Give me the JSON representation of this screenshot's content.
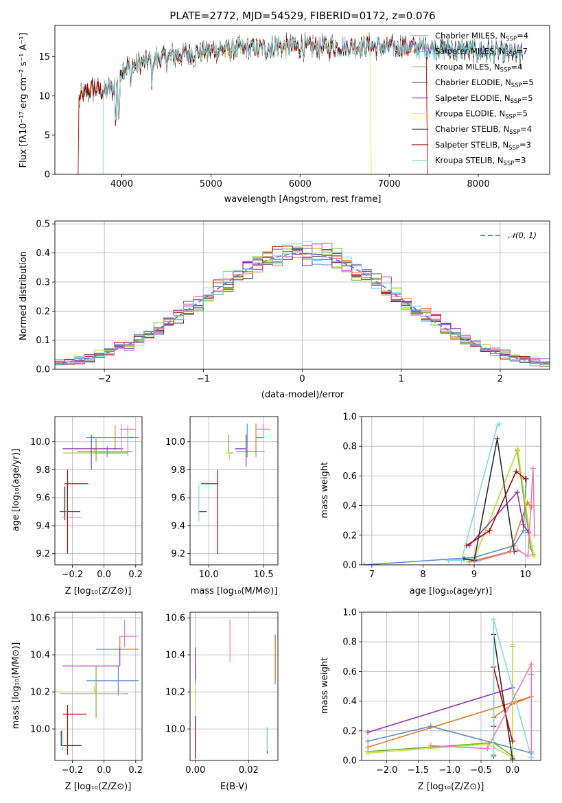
{
  "colors": [
    "#5b8bd6",
    "#e07b1c",
    "#67b51e",
    "#555555",
    "#8f2fb5",
    "#e8e85a",
    "#2b2b2b",
    "#b00000",
    "#80d8e0"
  ],
  "panel_colors": [
    "#5b8bd6",
    "#e07b1c",
    "#67b51e",
    "#2b2b2b",
    "#8f2fb5",
    "#c8e040",
    "#555555",
    "#b00000",
    "#80d8e0",
    "#e87bb8"
  ],
  "chart_data": [
    {
      "type": "line",
      "title": "PLATE=2772, MJD=54529, FIBERID=0172, z=0.076",
      "xlabel": "wavelength [Angstrom, rest frame]",
      "ylabel": "Flux [fλ10⁻¹⁷ erg cm⁻² s⁻¹ A⁻¹]",
      "xlim": [
        3250,
        8800
      ],
      "ylim": [
        0,
        19
      ],
      "xticks": [
        4000,
        5000,
        6000,
        7000,
        8000
      ],
      "yticks": [
        0,
        5,
        10,
        15
      ],
      "legend_position": "top-right",
      "series": [
        {
          "name": "Chabrier MILES, N",
          "sub": "SSP",
          "suffix": "=4"
        },
        {
          "name": "Salpeter MILES, N",
          "sub": "SSP",
          "suffix": "=7"
        },
        {
          "name": "Kroupa MILES, N",
          "sub": "SSP",
          "suffix": "=4"
        },
        {
          "name": "Chabrier ELODIE, N",
          "sub": "SSP",
          "suffix": "=5"
        },
        {
          "name": "Salpeter ELODIE, N",
          "sub": "SSP",
          "suffix": "=5"
        },
        {
          "name": "Kroupa ELODIE, N",
          "sub": "SSP",
          "suffix": "=5"
        },
        {
          "name": "Chabrier STELIB, N",
          "sub": "SSP",
          "suffix": "=4"
        },
        {
          "name": "Salpeter STELIB, N",
          "sub": "SSP",
          "suffix": "=3"
        },
        {
          "name": "Kroupa STELIB, N",
          "sub": "SSP",
          "suffix": "=3"
        }
      ],
      "continuum": {
        "x": [
          3520,
          3600,
          3700,
          3800,
          3900,
          4000,
          4200,
          4500,
          4800,
          5000,
          5300,
          5600,
          6000,
          6500,
          7000,
          7400,
          7800,
          8200,
          8500
        ],
        "y": [
          9.5,
          10.5,
          11,
          10.5,
          11,
          13.5,
          14.2,
          15,
          15.5,
          15.8,
          16,
          16.1,
          16.2,
          16.3,
          16.3,
          16.1,
          15.9,
          15.6,
          15.3
        ]
      }
    },
    {
      "type": "histogram",
      "xlabel": "(data-model)/error",
      "ylabel": "Normed distribution",
      "xlim": [
        -2.5,
        2.5
      ],
      "ylim": [
        0,
        0.51
      ],
      "xticks": [
        -2,
        -1,
        0,
        1,
        2
      ],
      "yticks": [
        0.0,
        0.1,
        0.2,
        0.3,
        0.4,
        0.5
      ],
      "legend_label": "𝒩(0, 1)",
      "legend_position": "top-right",
      "bin_width": 0.1,
      "reference": "normal(0,1)"
    },
    {
      "type": "scatter",
      "xlabel": "Z [log₁₀(Z/Z⊙)]",
      "ylabel": "age  [log₁₀(age/yr)]",
      "xlim": [
        -0.31,
        0.24
      ],
      "ylim": [
        9.12,
        10.18
      ],
      "xticks": [
        -0.2,
        0.0,
        0.2
      ],
      "yticks": [
        9.2,
        9.4,
        9.6,
        9.8,
        10.0
      ],
      "errorbars": [
        {
          "x": 0.02,
          "xerr": [
            0.19,
            0.16
          ],
          "y": 9.93,
          "yerr": [
            0.04,
            0.04
          ],
          "c": 0
        },
        {
          "x": 0.07,
          "xerr": [
            0.18,
            0.15
          ],
          "y": 10.03,
          "yerr": [
            0.09,
            0.09
          ],
          "c": 1
        },
        {
          "x": -0.05,
          "xerr": [
            0.21,
            0.2
          ],
          "y": 9.92,
          "yerr": [
            0.06,
            0.1
          ],
          "c": 2
        },
        {
          "x": -0.06,
          "xerr": [
            0.2,
            0.0
          ],
          "y": 9.92,
          "yerr": [
            0.0,
            0.03
          ],
          "c": 5
        },
        {
          "x": -0.08,
          "xerr": [
            0.18,
            0.2
          ],
          "y": 9.95,
          "yerr": [
            0.15,
            0.1
          ],
          "c": 4
        },
        {
          "x": -0.25,
          "xerr": [
            0.03,
            0.1
          ],
          "y": 9.5,
          "yerr": [
            0.06,
            0.18
          ],
          "c": 3
        },
        {
          "x": -0.24,
          "xerr": [
            0.03,
            0.1
          ],
          "y": 9.46,
          "yerr": [
            0.02,
            0.23
          ],
          "c": 8
        },
        {
          "x": -0.23,
          "xerr": [
            0.02,
            0.13
          ],
          "y": 9.7,
          "yerr": [
            0.5,
            0.1
          ],
          "c": 7
        },
        {
          "x": 0.15,
          "xerr": [
            0.05,
            0.05
          ],
          "y": 10.09,
          "yerr": [
            0.19,
            0.03
          ],
          "c": 9
        },
        {
          "x": 0.11,
          "xerr": [
            0.0,
            0.0
          ],
          "y": 10.05,
          "yerr": [
            0.12,
            0.08
          ],
          "c": 9
        }
      ]
    },
    {
      "type": "scatter",
      "xlabel": "mass [log₁₀(M/M⊙)]",
      "ylabel": "",
      "xlim": [
        9.83,
        10.63
      ],
      "ylim": [
        9.12,
        10.18
      ],
      "xticks": [
        10.0,
        10.5
      ],
      "yticks": [
        9.2,
        9.4,
        9.6,
        9.8,
        10.0
      ],
      "errorbars": [
        {
          "x": 10.35,
          "xerr": [
            0.1,
            0.16
          ],
          "y": 9.93,
          "yerr": [
            0.04,
            0.2
          ],
          "c": 0
        },
        {
          "x": 10.43,
          "xerr": [
            0.0,
            0.07
          ],
          "y": 10.03,
          "yerr": [
            0.14,
            0.1
          ],
          "c": 1
        },
        {
          "x": 10.18,
          "xerr": [
            0.0,
            0.04
          ],
          "y": 9.92,
          "yerr": [
            0.0,
            0.13
          ],
          "c": 2
        },
        {
          "x": 10.19,
          "xerr": [
            0.04,
            0.0
          ],
          "y": 9.92,
          "yerr": [
            0.05,
            0.0
          ],
          "c": 5
        },
        {
          "x": 10.34,
          "xerr": [
            0.1,
            0.0
          ],
          "y": 9.95,
          "yerr": [
            0.13,
            0.1
          ],
          "c": 4
        },
        {
          "x": 9.91,
          "xerr": [
            0.0,
            0.07
          ],
          "y": 9.5,
          "yerr": [
            0.0,
            0.0
          ],
          "c": 3
        },
        {
          "x": 9.91,
          "xerr": [
            0.0,
            0.0
          ],
          "y": 9.46,
          "yerr": [
            0.03,
            0.23
          ],
          "c": 8
        },
        {
          "x": 10.08,
          "xerr": [
            0.15,
            0.0
          ],
          "y": 9.7,
          "yerr": [
            0.5,
            0.1
          ],
          "c": 7
        },
        {
          "x": 10.5,
          "xerr": [
            0.07,
            0.06
          ],
          "y": 10.09,
          "yerr": [
            0.06,
            0.04
          ],
          "c": 9
        }
      ]
    },
    {
      "type": "line",
      "xlabel": "age  [log₁₀(age/yr)]",
      "ylabel": "mass weight",
      "xlim": [
        6.8,
        10.3
      ],
      "ylim": [
        0,
        1
      ],
      "xticks": [
        7,
        8,
        9,
        10
      ],
      "yticks": [
        0.0,
        0.2,
        0.4,
        0.6,
        0.8,
        1.0
      ],
      "series": [
        {
          "c": 0,
          "x": [
            6.85,
            9.0,
            9.78,
            9.96,
            10.02
          ],
          "y": [
            0.0,
            0.05,
            0.13,
            0.23,
            0.58
          ]
        },
        {
          "c": 1,
          "x": [
            8.9,
            9.7,
            10.04,
            10.12
          ],
          "y": [
            0.02,
            0.09,
            0.42,
            0.39
          ]
        },
        {
          "c": 2,
          "x": [
            8.5,
            9.0,
            9.84,
            10.1,
            10.15
          ],
          "y": [
            0.03,
            0.04,
            0.77,
            0.12,
            0.07
          ]
        },
        {
          "c": 5,
          "x": [
            8.5,
            9.0,
            9.85,
            10.12,
            10.17
          ],
          "y": [
            0.03,
            0.04,
            0.78,
            0.13,
            0.06
          ]
        },
        {
          "c": 4,
          "x": [
            8.9,
            9.84,
            9.96,
            10.06
          ],
          "y": [
            0.13,
            0.49,
            0.27,
            0.22
          ]
        },
        {
          "c": 3,
          "x": [
            8.8,
            9.0,
            9.45,
            9.78
          ],
          "y": [
            0.04,
            0.03,
            0.85,
            0.09
          ]
        },
        {
          "c": 7,
          "x": [
            8.85,
            9.3,
            9.82,
            10.0
          ],
          "y": [
            0.13,
            0.23,
            0.63,
            0.58
          ]
        },
        {
          "c": 8,
          "x": [
            8.5,
            8.75,
            9.45,
            9.5
          ],
          "y": [
            0.03,
            0.03,
            0.94,
            0.95
          ]
        },
        {
          "c": 9,
          "x": [
            9.0,
            9.85,
            10.05,
            10.15,
            10.18
          ],
          "y": [
            0.02,
            0.1,
            0.06,
            0.65,
            0.2
          ]
        }
      ]
    },
    {
      "type": "scatter",
      "xlabel": "Z [log₁₀(Z/Z⊙)]",
      "ylabel": "mass [log₁₀(M/M⊙)]",
      "xlim": [
        -0.31,
        0.24
      ],
      "ylim": [
        9.83,
        10.63
      ],
      "xticks": [
        -0.2,
        0.0,
        0.2
      ],
      "yticks": [
        10.0,
        10.2,
        10.4,
        10.6
      ],
      "errorbars": [
        {
          "x": 0.09,
          "xerr": [
            0.2,
            0.13
          ],
          "y": 10.26,
          "yerr": [
            0.08,
            0.08
          ],
          "c": 0
        },
        {
          "x": 0.1,
          "xerr": [
            0.15,
            0.12
          ],
          "y": 10.43,
          "yerr": [
            0.0,
            0.07
          ],
          "c": 1
        },
        {
          "x": -0.05,
          "xerr": [
            0.22,
            0.2
          ],
          "y": 10.19,
          "yerr": [
            0.13,
            0.15
          ],
          "c": 2
        },
        {
          "x": -0.06,
          "xerr": [
            0.22,
            0.2
          ],
          "y": 10.19,
          "yerr": [
            0.0,
            0.04
          ],
          "c": 5
        },
        {
          "x": 0.1,
          "xerr": [
            0.36,
            0.0
          ],
          "y": 10.34,
          "yerr": [
            0.0,
            0.1
          ],
          "c": 4
        },
        {
          "x": -0.27,
          "xerr": [
            0.0,
            0.13
          ],
          "y": 9.91,
          "yerr": [
            0.0,
            0.08
          ],
          "c": 3
        },
        {
          "x": -0.26,
          "xerr": [
            0.0,
            0.0
          ],
          "y": 9.91,
          "yerr": [
            0.03,
            0.09
          ],
          "c": 8
        },
        {
          "x": -0.23,
          "xerr": [
            0.03,
            0.12
          ],
          "y": 10.08,
          "yerr": [
            0.22,
            0.05
          ],
          "c": 7
        },
        {
          "x": 0.13,
          "xerr": [
            0.03,
            0.08
          ],
          "y": 10.5,
          "yerr": [
            0.06,
            0.09
          ],
          "c": 9
        }
      ]
    },
    {
      "type": "scatter",
      "xlabel": "E(B-V)",
      "ylabel": "",
      "xlim": [
        -0.002,
        0.031
      ],
      "ylim": [
        9.83,
        10.63
      ],
      "xticks": [
        0.0,
        0.02
      ],
      "yticks": [
        10.0,
        10.2,
        10.4,
        10.6
      ],
      "errorbars": [
        {
          "x": 0.0,
          "xerr": [
            0,
            0
          ],
          "y": 10.26,
          "yerr": [
            0.1,
            0.08
          ],
          "c": 0
        },
        {
          "x": 0.0,
          "xerr": [
            0,
            0
          ],
          "y": 10.35,
          "yerr": [
            0.08,
            0.09
          ],
          "c": 4
        },
        {
          "x": 0.0,
          "xerr": [
            0,
            0
          ],
          "y": 10.17,
          "yerr": [
            0.05,
            0.08
          ],
          "c": 5
        },
        {
          "x": 0.0,
          "xerr": [
            0,
            0
          ],
          "y": 9.99,
          "yerr": [
            0.15,
            0.08
          ],
          "c": 7
        },
        {
          "x": 0.013,
          "xerr": [
            0,
            0
          ],
          "y": 10.47,
          "yerr": [
            0.11,
            0.12
          ],
          "c": 9
        },
        {
          "x": 0.027,
          "xerr": [
            0,
            0
          ],
          "y": 9.93,
          "yerr": [
            0.06,
            0.08
          ],
          "c": 3
        },
        {
          "x": 0.027,
          "xerr": [
            0,
            0
          ],
          "y": 9.93,
          "yerr": [
            0.05,
            0.08
          ],
          "c": 8
        },
        {
          "x": 0.03,
          "xerr": [
            0,
            0
          ],
          "y": 10.32,
          "yerr": [
            0.08,
            0.19
          ],
          "c": 0
        },
        {
          "x": 0.03,
          "xerr": [
            0,
            0
          ],
          "y": 10.38,
          "yerr": [
            0.12,
            0.1
          ],
          "c": 1
        }
      ]
    },
    {
      "type": "line",
      "xlabel": "Z [log₁₀(Z/Z⊙)]",
      "ylabel": "mass weight",
      "xlim": [
        -2.4,
        0.45
      ],
      "ylim": [
        0,
        1
      ],
      "xticks": [
        -2.0,
        -1.5,
        -1.0,
        -0.5,
        0.0
      ],
      "yticks": [
        0.0,
        0.2,
        0.4,
        0.6,
        0.8,
        1.0
      ],
      "series": [
        {
          "c": 0,
          "x": [
            -2.3,
            -1.3,
            0.3,
            0.3
          ],
          "y": [
            0.13,
            0.23,
            0.05,
            0.58
          ]
        },
        {
          "c": 1,
          "x": [
            -2.3,
            0.3,
            0.0,
            -0.3
          ],
          "y": [
            0.09,
            0.43,
            0.38,
            0.29
          ]
        },
        {
          "c": 2,
          "x": [
            -2.3,
            -0.3,
            0.0,
            0.0
          ],
          "y": [
            0.06,
            0.12,
            0.03,
            0.77
          ]
        },
        {
          "c": 5,
          "x": [
            -2.3,
            -0.4,
            0.0,
            0.0
          ],
          "y": [
            0.05,
            0.11,
            0.02,
            0.78
          ]
        },
        {
          "c": 4,
          "x": [
            -2.3,
            0.0
          ],
          "y": [
            0.19,
            0.49
          ]
        },
        {
          "c": 3,
          "x": [
            -0.3,
            -0.3,
            0.0
          ],
          "y": [
            0.03,
            0.85,
            0.01
          ]
        },
        {
          "c": 7,
          "x": [
            -0.3,
            -0.3,
            0.0
          ],
          "y": [
            0.23,
            0.63,
            0.13
          ]
        },
        {
          "c": 8,
          "x": [
            -0.3,
            -0.3,
            0.3,
            0.3
          ],
          "y": [
            0.04,
            0.95,
            0.02,
            0.02
          ]
        },
        {
          "c": 9,
          "x": [
            -1.3,
            -0.4,
            0.3,
            0.3
          ],
          "y": [
            0.1,
            0.08,
            0.65,
            0.06
          ]
        }
      ]
    }
  ]
}
